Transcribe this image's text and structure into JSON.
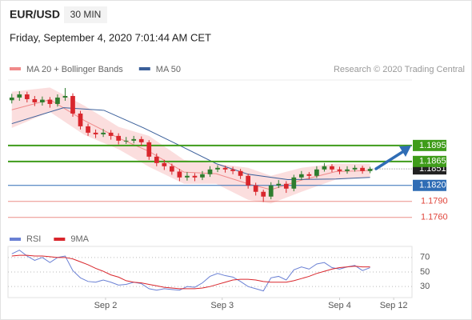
{
  "header": {
    "symbol": "EUR/USD",
    "timeframe": "30 MIN",
    "timestamp": "Friday, September 4, 2020 7:01:44 AM CET"
  },
  "chart_data": [
    {
      "type": "candlestick",
      "attribution": "Research © 2020 Trading Central",
      "up_color": "#2e7d2e",
      "down_color": "#d9262c",
      "xlim": [
        -0.5,
        52.5
      ],
      "ylim": [
        1.174,
        1.2018
      ],
      "xticks": [
        {
          "value": 12.3,
          "label": "Sep 2"
        },
        {
          "value": 27.6,
          "label": "Sep 3"
        },
        {
          "value": 43,
          "label": "Sep 4"
        },
        {
          "value": 50.1,
          "label": "Sep 12"
        }
      ],
      "open": [
        1.198,
        1.1985,
        1.1991,
        1.1982,
        1.1976,
        1.1981,
        1.1973,
        1.1985,
        1.1988,
        1.1955,
        1.1931,
        1.1919,
        1.1916,
        1.1919,
        1.1913,
        1.1904,
        1.1904,
        1.1907,
        1.1901,
        1.1874,
        1.1862,
        1.1856,
        1.1846,
        1.1835,
        1.1838,
        1.1835,
        1.1841,
        1.185,
        1.1853,
        1.185,
        1.1847,
        1.1838,
        1.182,
        1.1808,
        1.1799,
        1.182,
        1.1823,
        1.1814,
        1.1835,
        1.1841,
        1.1838,
        1.185,
        1.1856,
        1.185,
        1.1847,
        1.185,
        1.1853,
        1.1847
      ],
      "high": [
        1.1992,
        1.1997,
        1.1996,
        1.1988,
        1.1987,
        1.1986,
        1.1991,
        1.2003,
        1.1993,
        1.196,
        1.1936,
        1.1925,
        1.1926,
        1.1924,
        1.1918,
        1.1911,
        1.1913,
        1.1912,
        1.1905,
        1.188,
        1.1868,
        1.1861,
        1.1851,
        1.1845,
        1.1843,
        1.1847,
        1.1856,
        1.1858,
        1.1857,
        1.1855,
        1.1851,
        1.1842,
        1.1825,
        1.1812,
        1.1826,
        1.183,
        1.1828,
        1.184,
        1.1847,
        1.1845,
        1.1856,
        1.1862,
        1.186,
        1.1855,
        1.1856,
        1.1858,
        1.1857,
        1.1855
      ],
      "low": [
        1.1974,
        1.1979,
        1.1976,
        1.1969,
        1.197,
        1.1966,
        1.1968,
        1.1979,
        1.1949,
        1.1925,
        1.1913,
        1.1909,
        1.1911,
        1.1906,
        1.1897,
        1.1898,
        1.1899,
        1.1895,
        1.1868,
        1.1856,
        1.1849,
        1.184,
        1.1828,
        1.1829,
        1.1828,
        1.183,
        1.1836,
        1.1845,
        1.1844,
        1.1841,
        1.1832,
        1.1814,
        1.1801,
        1.1789,
        1.1794,
        1.1815,
        1.1806,
        1.1809,
        1.183,
        1.1832,
        1.1834,
        1.1846,
        1.1845,
        1.1841,
        1.1842,
        1.1846,
        1.1842,
        1.1843
      ],
      "close": [
        1.1985,
        1.1991,
        1.1982,
        1.1976,
        1.1981,
        1.1973,
        1.1985,
        1.1988,
        1.1955,
        1.1931,
        1.1919,
        1.1916,
        1.1919,
        1.1913,
        1.1904,
        1.1904,
        1.1907,
        1.1901,
        1.1874,
        1.1862,
        1.1856,
        1.1846,
        1.1835,
        1.1838,
        1.1835,
        1.1841,
        1.185,
        1.1853,
        1.185,
        1.1847,
        1.1838,
        1.182,
        1.1808,
        1.1799,
        1.182,
        1.1823,
        1.1814,
        1.1835,
        1.1841,
        1.1838,
        1.185,
        1.1856,
        1.185,
        1.1847,
        1.185,
        1.1853,
        1.1847,
        1.1851
      ],
      "series": [
        {
          "name": "MA 20 + Bollinger Bands",
          "color": "#f08a8a",
          "band_color": "#fbdede",
          "x": [
            0,
            5,
            9.5,
            14,
            18,
            22.6,
            26.8,
            31,
            34,
            38,
            42.5,
            47
          ],
          "values": [
            1.1962,
            1.1981,
            1.1942,
            1.1909,
            1.1884,
            1.1845,
            1.1842,
            1.1823,
            1.1812,
            1.183,
            1.1846,
            1.1848
          ],
          "upper": [
            1.1996,
            1.2004,
            1.197,
            1.193,
            1.1913,
            1.1868,
            1.1861,
            1.1853,
            1.1838,
            1.1853,
            1.1861,
            1.1861
          ],
          "lower": [
            1.1928,
            1.1958,
            1.1915,
            1.1888,
            1.1855,
            1.1823,
            1.1823,
            1.1793,
            1.1786,
            1.1808,
            1.1831,
            1.1835
          ]
        },
        {
          "name": "MA 50",
          "color": "#3a5f9a",
          "x": [
            0,
            6.8,
            12.1,
            17.3,
            22.6,
            26.8,
            31,
            36.2,
            42.5,
            47
          ],
          "values": [
            1.1936,
            1.1966,
            1.1961,
            1.1928,
            1.1891,
            1.1861,
            1.1841,
            1.1831,
            1.1832,
            1.1835
          ]
        }
      ],
      "levels": [
        {
          "value": 1.1895,
          "color": "#3f9c1a",
          "style": "box"
        },
        {
          "value": 1.1851,
          "color": "#222222",
          "style": "current"
        },
        {
          "value": 1.1865,
          "color": "#3f9c1a",
          "style": "box"
        },
        {
          "value": 1.182,
          "label": "1.1820",
          "color": "#2f6db5",
          "style": "box"
        },
        {
          "value": 1.179,
          "label": "1.1790",
          "color": "#e0463c",
          "style": "text"
        },
        {
          "value": 1.176,
          "label": "1.1760",
          "color": "#e0463c",
          "style": "text"
        }
      ]
    },
    {
      "type": "line",
      "xlim": [
        -0.5,
        52.5
      ],
      "ylim": [
        17,
        83
      ],
      "yticks": [
        30,
        50,
        70
      ],
      "series": [
        {
          "name": "RSI",
          "color": "#6a80d4",
          "values": [
            75,
            80,
            72,
            66,
            70,
            63,
            70,
            72,
            52,
            42,
            37,
            36,
            39,
            36,
            32,
            33,
            36,
            34,
            27,
            25,
            27,
            26,
            25,
            30,
            29,
            35,
            44,
            48,
            45,
            43,
            37,
            30,
            27,
            24,
            42,
            44,
            39,
            53,
            57,
            54,
            61,
            63,
            56,
            54,
            57,
            59,
            52,
            56
          ]
        },
        {
          "name": "9MA",
          "color": "#d9262c",
          "values": [
            72,
            73,
            73,
            72,
            72,
            71,
            70,
            70,
            68,
            64,
            60,
            55,
            51,
            46,
            43,
            38,
            36,
            35,
            33,
            31,
            29,
            28,
            27,
            27,
            27,
            28,
            30,
            33,
            36,
            39,
            40,
            40,
            39,
            37,
            36,
            36,
            36,
            38,
            41,
            44,
            48,
            51,
            54,
            56,
            57,
            58,
            57,
            57
          ]
        }
      ]
    }
  ]
}
